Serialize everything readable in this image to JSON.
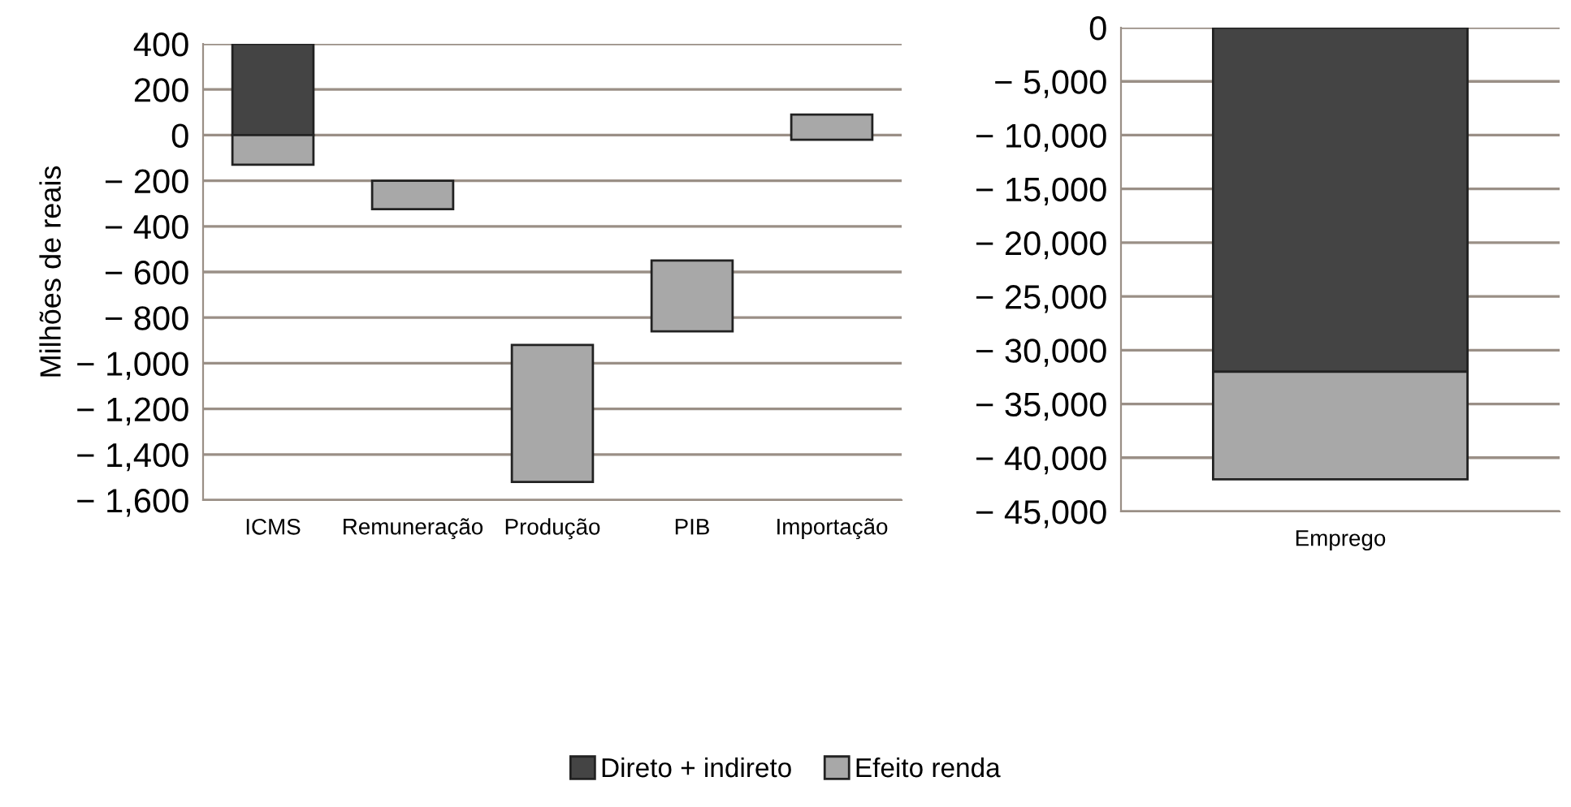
{
  "chart_data": [
    {
      "type": "bar",
      "ylabel": "Milhões de reais",
      "categories": [
        "ICMS",
        "Remuneração",
        "Produção",
        "PIB",
        "Importação"
      ],
      "series": [
        {
          "name": "Direto + indireto",
          "color": "#444444",
          "base": [
            0,
            null,
            null,
            null,
            null
          ],
          "values": [
            400,
            null,
            null,
            null,
            null
          ]
        },
        {
          "name": "Efeito renda",
          "color": "#a8a8a8",
          "base": [
            0,
            -200,
            -920,
            -550,
            -20
          ],
          "values": [
            -130,
            -125,
            -600,
            -310,
            110
          ]
        }
      ],
      "ylim": [
        -1600,
        400
      ],
      "yticks": [
        400,
        200,
        0,
        {
          "value": -200,
          "label": "− 200"
        },
        {
          "value": -400,
          "label": "− 400"
        },
        {
          "value": -600,
          "label": "− 600"
        },
        {
          "value": -800,
          "label": "− 800"
        },
        {
          "value": -1000,
          "label": "− 1,000"
        },
        {
          "value": -1200,
          "label": "− 1,200"
        },
        {
          "value": -1400,
          "label": "− 1,400"
        },
        {
          "value": -1600,
          "label": "− 1,600"
        }
      ],
      "grid": "y",
      "legend": "bottom"
    },
    {
      "type": "bar",
      "categories": [
        "Emprego"
      ],
      "series": [
        {
          "color": "#444444",
          "base": [
            0
          ],
          "values": [
            -32000
          ]
        },
        {
          "color": "#a8a8a8",
          "base": [
            -32000
          ],
          "values": [
            -10000
          ]
        }
      ],
      "ylim": [
        -45000,
        0
      ],
      "yticks": [
        0,
        {
          "value": -5000,
          "label": "− 5,000"
        },
        {
          "value": -10000,
          "label": "− 10,000"
        },
        {
          "value": -15000,
          "label": "− 15,000"
        },
        {
          "value": -20000,
          "label": "− 20,000"
        },
        {
          "value": -25000,
          "label": "− 25,000"
        },
        {
          "value": -30000,
          "label": "− 30,000"
        },
        {
          "value": -35000,
          "label": "− 35,000"
        },
        {
          "value": -40000,
          "label": "− 40,000"
        },
        {
          "value": -45000,
          "label": "− 45,000"
        }
      ],
      "grid": "y"
    }
  ]
}
